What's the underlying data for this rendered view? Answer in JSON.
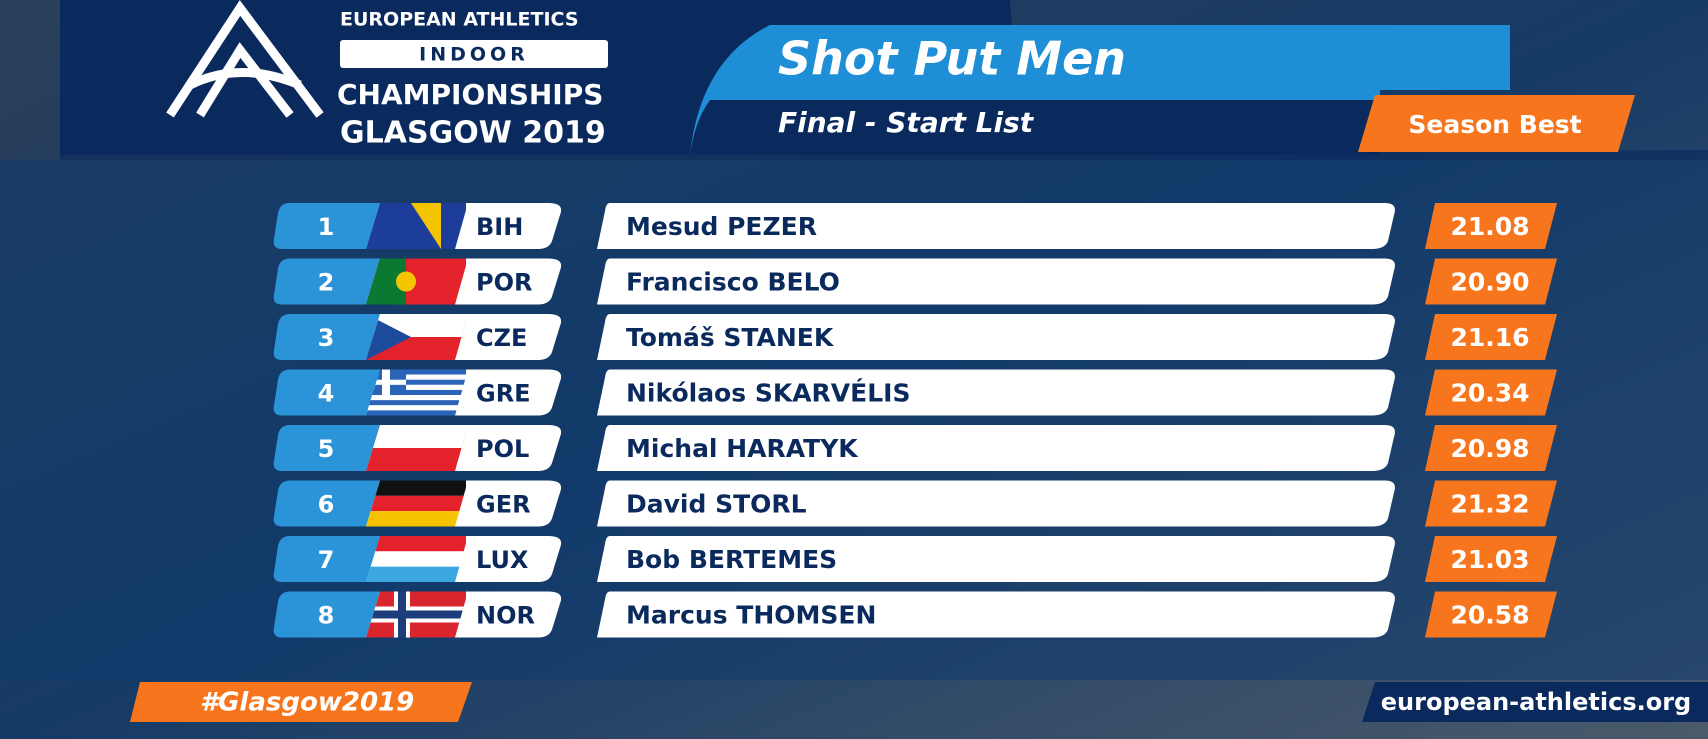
{
  "header": {
    "organisation": "EUROPEAN ATHLETICS",
    "event_type": "INDOOR",
    "event": "CHAMPIONSHIPS",
    "edition": "GLASGOW 2019"
  },
  "title": "Shot Put Men",
  "subtitle": "Final - Start List",
  "table": {
    "column": "Season Best",
    "rows": [
      [
        1,
        "BIH",
        "Mesud PEZER",
        "21.08"
      ],
      [
        2,
        "POR",
        "Francisco BELO",
        "20.90"
      ],
      [
        3,
        "CZE",
        "Tomáš STANEK",
        "21.16"
      ],
      [
        4,
        "GRE",
        "Nikólaos SKARVÉLIS",
        "20.34"
      ],
      [
        5,
        "POL",
        "Michal HARATYK",
        "20.98"
      ],
      [
        6,
        "GER",
        "David STORL",
        "21.32"
      ],
      [
        7,
        "LUX",
        "Bob BERTEMES",
        "21.03"
      ],
      [
        8,
        "NOR",
        "Marcus THOMSEN",
        "20.58"
      ]
    ]
  },
  "footer": {
    "hashtag": "#Glasgow2019",
    "website": "european-athletics.org"
  }
}
